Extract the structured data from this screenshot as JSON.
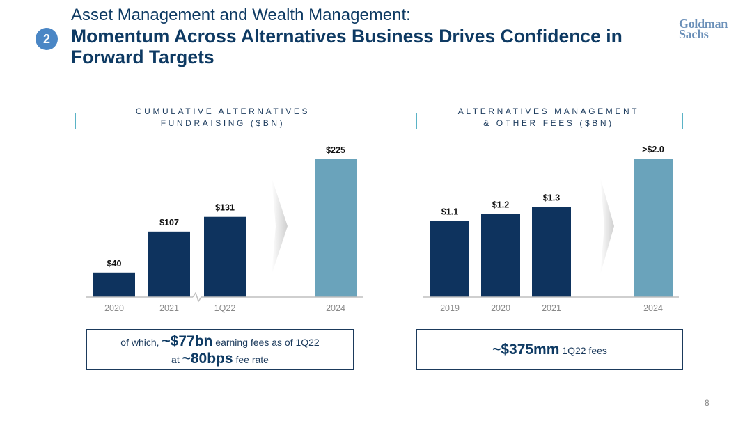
{
  "badge": "2",
  "header": {
    "subtitle": "Asset Management and Wealth Management:",
    "headline": "Momentum Across Alternatives Business Drives Confidence in Forward Targets"
  },
  "logo": {
    "line1": "Goldman",
    "line2": "Sachs"
  },
  "chart_data": [
    {
      "type": "bar",
      "title_line1": "CUMULATIVE ALTERNATIVES",
      "title_line2": "FUNDRAISING ($BN)",
      "categories": [
        "2020",
        "2021",
        "1Q22",
        "2024"
      ],
      "values": [
        40,
        107,
        131,
        225
      ],
      "labels": [
        "$40",
        "$107",
        "$131",
        "$225"
      ],
      "target_index": 3,
      "axis_break_after": 1,
      "ylim": [
        0,
        225
      ]
    },
    {
      "type": "bar",
      "title_line1": "ALTERNATIVES MANAGEMENT",
      "title_line2": "& OTHER FEES ($BN)",
      "categories": [
        "2019",
        "2020",
        "2021",
        "2024"
      ],
      "values": [
        1.1,
        1.2,
        1.3,
        2.0
      ],
      "labels": [
        "$1.1",
        "$1.2",
        "$1.3",
        ">$2.0"
      ],
      "target_index": 3
    }
  ],
  "callouts": {
    "left": {
      "pre1": "of which,",
      "big1": "~$77bn",
      "post1": "earning fees as of 1Q22",
      "pre2": "at",
      "big2": "~80bps",
      "post2": "fee rate"
    },
    "right": {
      "big": "~$375mm",
      "post": "1Q22 fees"
    }
  },
  "colors": {
    "actual": "#0e335e",
    "target": "#6aa3bb",
    "axis": "#bfbfbf",
    "tick": "#8a8a8a",
    "accent_line": "#5bb3c6"
  },
  "page_number": "8"
}
